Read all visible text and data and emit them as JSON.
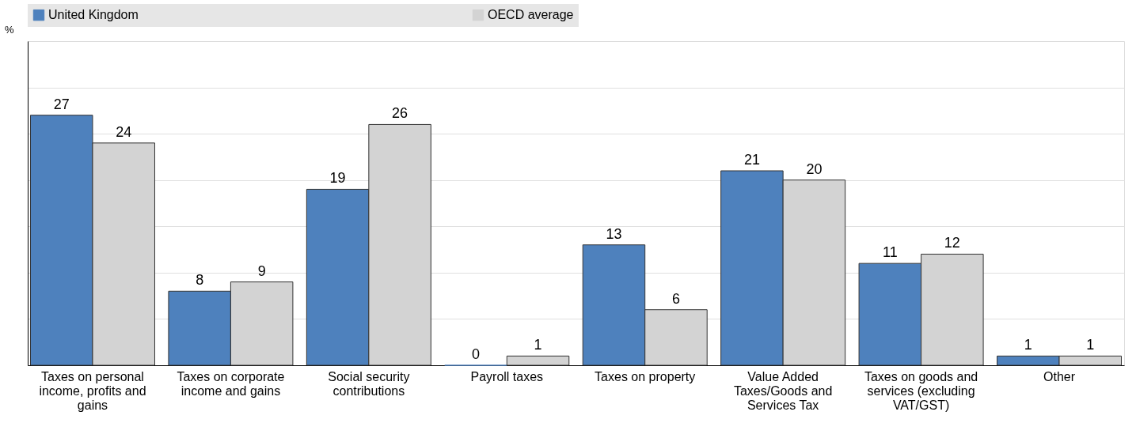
{
  "chart_data": {
    "type": "bar",
    "categories": [
      "Taxes on personal income, profits and gains",
      "Taxes on corporate income and gains",
      "Social security contributions",
      "Payroll taxes",
      "Taxes on property",
      "Value Added Taxes/Goods and Services Tax",
      "Taxes on goods and services (excluding VAT/GST)",
      "Other"
    ],
    "series": [
      {
        "name": "United Kingdom",
        "color": "#4e81bd",
        "values": [
          27,
          8,
          19,
          0,
          13,
          21,
          11,
          1
        ]
      },
      {
        "name": "OECD average",
        "color": "#d3d3d3",
        "values": [
          24,
          9,
          26,
          1,
          6,
          20,
          12,
          1
        ]
      }
    ],
    "ylabel": "%",
    "ylim": [
      0,
      35
    ],
    "yticks": [
      {
        "value": 0,
        "label": null
      },
      {
        "value": 5,
        "label": null
      },
      {
        "value": 10,
        "label": null
      },
      {
        "value": 15,
        "label": null
      },
      {
        "value": 20,
        "label": null
      },
      {
        "value": 25,
        "label": null
      },
      {
        "value": 30,
        "label": null
      }
    ],
    "tick_labels": "x",
    "grid": "y",
    "legend": "top",
    "data_labels": true
  }
}
